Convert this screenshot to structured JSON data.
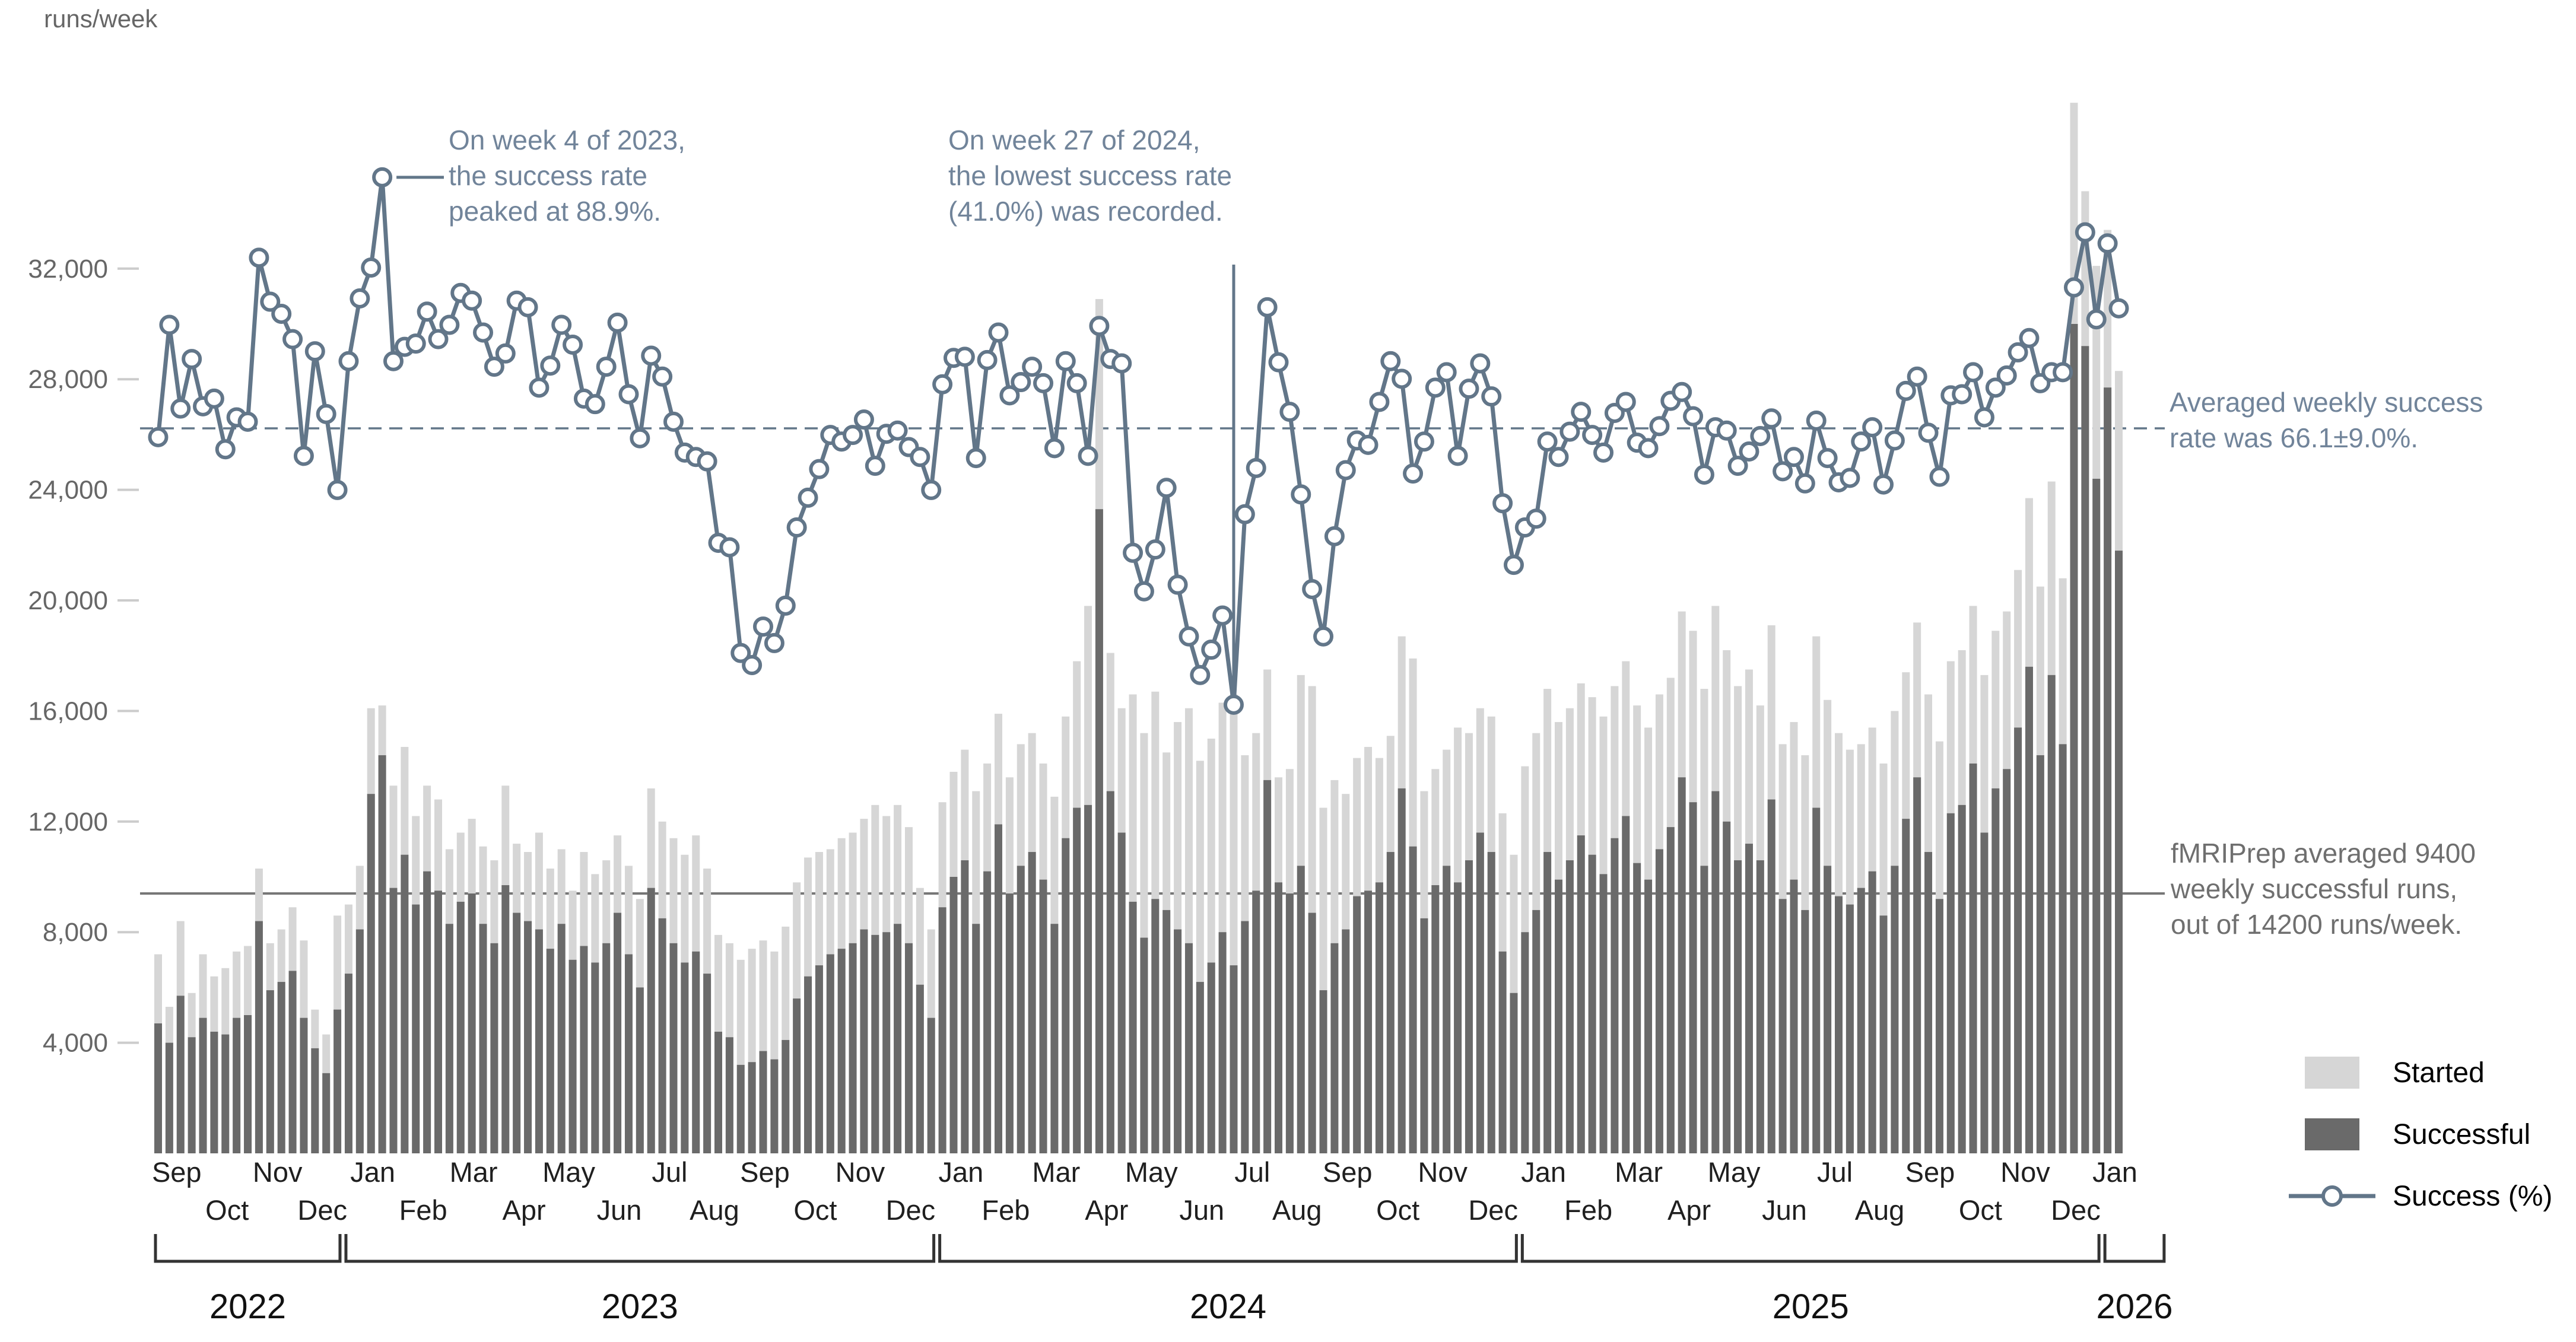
{
  "page": {
    "background": "#ffffff"
  },
  "chart_data": {
    "type": "bar+line",
    "unit_label": "runs/week",
    "y_axis": {
      "ticks": [
        {
          "label": "4,000",
          "value": 4000
        },
        {
          "label": "8,000",
          "value": 8000
        },
        {
          "label": "12,000",
          "value": 12000
        },
        {
          "label": "16,000",
          "value": 16000
        },
        {
          "label": "20,000",
          "value": 20000
        },
        {
          "label": "24,000",
          "value": 24000
        },
        {
          "label": "28,000",
          "value": 28000
        },
        {
          "label": "32,000",
          "value": 32000
        }
      ]
    },
    "x_axis": {
      "months": [
        {
          "label": "Sep",
          "weeks": 4
        },
        {
          "label": "Oct",
          "weeks": 5
        },
        {
          "label": "Nov",
          "weeks": 4
        },
        {
          "label": "Dec",
          "weeks": 4
        },
        {
          "label": "Jan",
          "weeks": 5
        },
        {
          "label": "Feb",
          "weeks": 4
        },
        {
          "label": "Mar",
          "weeks": 5
        },
        {
          "label": "Apr",
          "weeks": 4
        },
        {
          "label": "May",
          "weeks": 4
        },
        {
          "label": "Jun",
          "weeks": 5
        },
        {
          "label": "Jul",
          "weeks": 4
        },
        {
          "label": "Aug",
          "weeks": 4
        },
        {
          "label": "Sep",
          "weeks": 5
        },
        {
          "label": "Oct",
          "weeks": 4
        },
        {
          "label": "Nov",
          "weeks": 4
        },
        {
          "label": "Dec",
          "weeks": 5
        },
        {
          "label": "Jan",
          "weeks": 4
        },
        {
          "label": "Feb",
          "weeks": 4
        },
        {
          "label": "Mar",
          "weeks": 5
        },
        {
          "label": "Apr",
          "weeks": 4
        },
        {
          "label": "May",
          "weeks": 4
        },
        {
          "label": "Jun",
          "weeks": 5
        },
        {
          "label": "Jul",
          "weeks": 4
        },
        {
          "label": "Aug",
          "weeks": 4
        },
        {
          "label": "Sep",
          "weeks": 5
        },
        {
          "label": "Oct",
          "weeks": 4
        },
        {
          "label": "Nov",
          "weeks": 4
        },
        {
          "label": "Dec",
          "weeks": 5
        },
        {
          "label": "Jan",
          "weeks": 4
        },
        {
          "label": "Feb",
          "weeks": 4
        },
        {
          "label": "Mar",
          "weeks": 5
        },
        {
          "label": "Apr",
          "weeks": 4
        },
        {
          "label": "May",
          "weeks": 4
        },
        {
          "label": "Jun",
          "weeks": 5
        },
        {
          "label": "Jul",
          "weeks": 4
        },
        {
          "label": "Aug",
          "weeks": 4
        },
        {
          "label": "Sep",
          "weeks": 5
        },
        {
          "label": "Oct",
          "weeks": 4
        },
        {
          "label": "Nov",
          "weeks": 4
        },
        {
          "label": "Dec",
          "weeks": 5
        },
        {
          "label": "Jan",
          "weeks": 2
        }
      ],
      "years": [
        {
          "label": "2022",
          "months": 4
        },
        {
          "label": "2023",
          "months": 12
        },
        {
          "label": "2024",
          "months": 12
        },
        {
          "label": "2025",
          "months": 12
        },
        {
          "label": "2026",
          "months": 1
        }
      ]
    },
    "legend": [
      {
        "label": "Started",
        "type": "swatch",
        "color": "#d6d6d6"
      },
      {
        "label": "Successful",
        "type": "swatch",
        "color": "#6a6a6a"
      },
      {
        "label": "Success (%)",
        "type": "line-marker",
        "color": "#627689"
      }
    ],
    "series": {
      "started": [
        7200,
        5300,
        8400,
        5800,
        7200,
        6400,
        6700,
        7300,
        7500,
        10300,
        7600,
        8100,
        8900,
        7700,
        5200,
        4300,
        8600,
        9000,
        10400,
        16100,
        16200,
        13300,
        14700,
        12200,
        13300,
        12800,
        11000,
        11600,
        12100,
        11100,
        10600,
        13300,
        11200,
        10900,
        11600,
        10300,
        11000,
        9500,
        10900,
        10100,
        10600,
        11500,
        10400,
        9200,
        13200,
        12000,
        11400,
        10800,
        11500,
        10300,
        7900,
        7600,
        7000,
        7400,
        7700,
        7300,
        8200,
        9800,
        10700,
        10900,
        11000,
        11400,
        11600,
        12100,
        12600,
        12200,
        12600,
        11800,
        9600,
        8100,
        12700,
        13800,
        14600,
        13100,
        14100,
        15900,
        13600,
        14800,
        15200,
        14100,
        12900,
        15800,
        17800,
        19800,
        30900,
        18100,
        16100,
        16600,
        15200,
        16700,
        14500,
        15600,
        16100,
        14200,
        15000,
        16300,
        16600,
        14400,
        15200,
        17500,
        13600,
        13900,
        17300,
        16900,
        12500,
        13500,
        13000,
        14300,
        14700,
        14300,
        15100,
        18700,
        17900,
        13100,
        13900,
        14600,
        15400,
        15200,
        16100,
        15800,
        12300,
        10800,
        14000,
        15200,
        16800,
        15600,
        16100,
        17000,
        16500,
        15800,
        16900,
        17800,
        16200,
        15400,
        16600,
        17200,
        19600,
        18900,
        16800,
        19800,
        18200,
        16900,
        17500,
        16200,
        19100,
        14800,
        15600,
        14400,
        18700,
        16400,
        15200,
        14600,
        14800,
        15400,
        14100,
        16000,
        17400,
        19200,
        16600,
        14900,
        17800,
        18200,
        19800,
        17300,
        18900,
        19600,
        21100,
        23700,
        20500,
        24300,
        20800,
        38000,
        34800,
        32100,
        33400,
        28300
      ],
      "successful": [
        4700,
        4000,
        5700,
        4200,
        4900,
        4400,
        4300,
        4900,
        5000,
        8400,
        5900,
        6200,
        6600,
        4900,
        3800,
        2900,
        5200,
        6500,
        8100,
        13000,
        14400,
        9600,
        10800,
        9000,
        10200,
        9500,
        8300,
        9100,
        9400,
        8300,
        7600,
        9700,
        8700,
        8400,
        8100,
        7400,
        8300,
        7000,
        7500,
        6900,
        7600,
        8700,
        7200,
        6000,
        9600,
        8500,
        7600,
        6900,
        7300,
        6500,
        4400,
        4200,
        3200,
        3300,
        3700,
        3400,
        4100,
        5600,
        6400,
        6800,
        7200,
        7400,
        7600,
        8100,
        7900,
        8000,
        8300,
        7600,
        6100,
        4900,
        8900,
        10000,
        10600,
        8300,
        10200,
        11900,
        9400,
        10400,
        10900,
        9900,
        8300,
        11400,
        12500,
        12600,
        23300,
        13100,
        11600,
        9100,
        7800,
        9200,
        8800,
        8100,
        7600,
        6200,
        6900,
        8000,
        6800,
        8400,
        9500,
        13500,
        9800,
        9400,
        10400,
        8700,
        5900,
        7600,
        8100,
        9300,
        9500,
        9800,
        10900,
        13200,
        11100,
        8500,
        9700,
        10400,
        9800,
        10600,
        11600,
        10900,
        7300,
        5800,
        8000,
        8800,
        10900,
        9900,
        10600,
        11500,
        10800,
        10100,
        11400,
        12200,
        10500,
        9900,
        11000,
        11800,
        13600,
        12700,
        10400,
        13100,
        12000,
        10600,
        11200,
        10600,
        12800,
        9200,
        9900,
        8800,
        12500,
        10400,
        9300,
        9000,
        9600,
        10200,
        8600,
        10400,
        12100,
        13600,
        10900,
        9200,
        12300,
        12600,
        14100,
        11600,
        13200,
        13900,
        15400,
        17600,
        14400,
        17300,
        14800,
        30000,
        29200,
        24400,
        27700,
        21800
      ],
      "success_rate": [
        65.3,
        75.5,
        67.9,
        72.4,
        68.1,
        68.8,
        64.2,
        67.1,
        66.7,
        81.6,
        77.6,
        76.5,
        74.2,
        63.6,
        73.1,
        67.4,
        60.5,
        72.2,
        77.9,
        80.7,
        88.9,
        72.2,
        73.5,
        73.8,
        76.7,
        74.2,
        75.5,
        78.4,
        77.7,
        74.8,
        71.7,
        72.9,
        77.7,
        77.1,
        69.8,
        71.8,
        75.5,
        73.7,
        68.8,
        68.3,
        71.7,
        75.7,
        69.2,
        65.2,
        72.7,
        70.8,
        66.7,
        63.9,
        63.5,
        63.1,
        55.7,
        55.3,
        45.7,
        44.6,
        48.1,
        46.6,
        50.0,
        57.1,
        59.8,
        62.4,
        65.5,
        64.9,
        65.5,
        66.9,
        62.7,
        65.6,
        65.9,
        64.4,
        63.5,
        60.5,
        70.1,
        72.5,
        72.6,
        63.4,
        72.3,
        74.8,
        69.1,
        70.3,
        71.7,
        70.2,
        64.3,
        72.2,
        70.2,
        63.6,
        75.4,
        72.4,
        72.0,
        54.8,
        51.3,
        55.1,
        60.7,
        51.9,
        47.2,
        43.7,
        46.0,
        49.1,
        41.0,
        58.3,
        62.5,
        77.1,
        72.1,
        67.6,
        60.1,
        51.5,
        47.2,
        56.3,
        62.3,
        65.0,
        64.6,
        68.5,
        72.2,
        70.6,
        62.0,
        64.9,
        69.8,
        71.2,
        63.6,
        69.7,
        72.0,
        69.0,
        59.3,
        53.7,
        57.1,
        57.9,
        64.9,
        63.5,
        65.8,
        67.6,
        65.5,
        63.9,
        67.5,
        68.5,
        64.8,
        64.3,
        66.3,
        68.6,
        69.4,
        67.2,
        61.9,
        66.2,
        65.9,
        62.7,
        64.0,
        65.4,
        67.0,
        62.2,
        63.5,
        61.1,
        66.8,
        63.4,
        61.2,
        61.6,
        64.9,
        66.2,
        61.0,
        65.0,
        69.5,
        70.8,
        65.7,
        61.7,
        69.1,
        69.2,
        71.2,
        67.1,
        69.8,
        70.9,
        73.0,
        74.3,
        70.2,
        71.2,
        71.2,
        78.9,
        83.9,
        76.0,
        82.9,
        77.0
      ]
    },
    "annotations": {
      "peak": {
        "week_index": 20,
        "value_pct": 88.9,
        "lines": [
          "On week 4 of 2023,",
          "the success rate",
          "peaked at 88.9%."
        ]
      },
      "trough": {
        "week_index": 96,
        "value_pct": 41.0,
        "lines": [
          "On week 27 of 2024,",
          "the lowest success rate",
          "(41.0%) was recorded."
        ]
      },
      "avg_rate": {
        "value_pct": 66.1,
        "sd_pct": 9.0,
        "lines": [
          "Averaged weekly success",
          "rate was 66.1±9.0%."
        ]
      },
      "avg_runs": {
        "successful": 9400,
        "started": 14200,
        "lines": [
          "fMRIPrep averaged 9400",
          "weekly successful runs,",
          "out of 14200 runs/week."
        ]
      }
    },
    "colors": {
      "started_bar": "#d6d6d6",
      "successful_bar": "#6a6a6a",
      "rate_line": "#627689",
      "slate_text": "#71849a",
      "gray_text": "#6f6f6f",
      "axis_text": "#666666",
      "tick": "#cccccc",
      "month_text": "#1f1f1f",
      "year_text": "#111111",
      "bracket": "#333333",
      "avg_runs_line": "#777777"
    }
  }
}
